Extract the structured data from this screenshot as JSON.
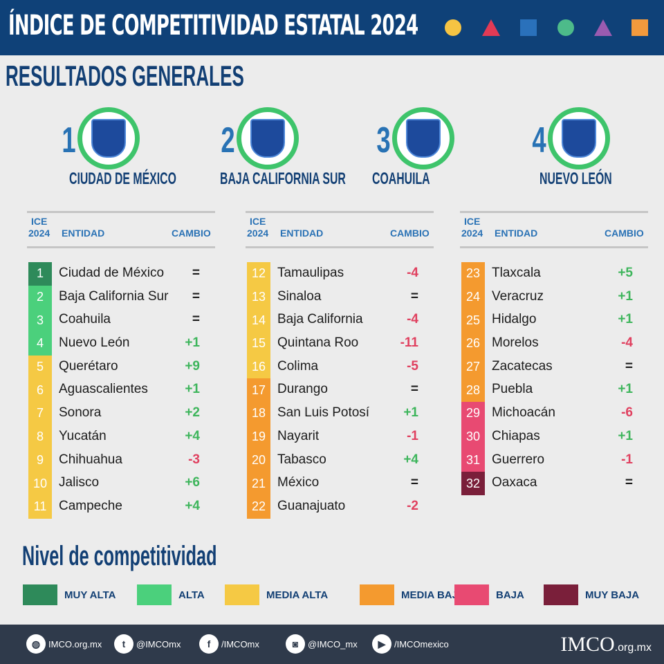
{
  "header": {
    "title": "ÍNDICE DE COMPETITIVIDAD ESTATAL 2024",
    "shapes": [
      {
        "type": "circle",
        "color": "#f6c443"
      },
      {
        "type": "triangle",
        "color": "#e23a55"
      },
      {
        "type": "square",
        "color": "#2a71bb"
      },
      {
        "type": "circle",
        "color": "#4dbb8a"
      },
      {
        "type": "triangle",
        "color": "#9a5bb0"
      },
      {
        "type": "square",
        "color": "#f39a3d"
      }
    ]
  },
  "subtitle": "RESULTADOS GENERALES",
  "top4": [
    {
      "rank": "1",
      "name": "CIUDAD DE MÉXICO"
    },
    {
      "rank": "2",
      "name": "BAJA CALIFORNIA SUR"
    },
    {
      "rank": "3",
      "name": "COAHUILA"
    },
    {
      "rank": "4",
      "name": "NUEVO LEÓN"
    }
  ],
  "table_header": {
    "ice": "ICE",
    "year": "2024",
    "entity": "ENTIDAD",
    "change": "CAMBIO"
  },
  "levels": [
    {
      "label": "MUY ALTA",
      "color": "#2e8a5a"
    },
    {
      "label": "ALTA",
      "color": "#4bd07c"
    },
    {
      "label": "MEDIA ALTA",
      "color": "#f5c944"
    },
    {
      "label": "MEDIA BAJA",
      "color": "#f49a2f"
    },
    {
      "label": "BAJA",
      "color": "#e84a72"
    },
    {
      "label": "MUY BAJA",
      "color": "#7a1f3a"
    }
  ],
  "change_colors": {
    "up": "#3db55b",
    "down": "#e0405f",
    "same": "#1b1b1b"
  },
  "columns": [
    [
      {
        "rank": "1",
        "name": "Ciudad de México",
        "change": "=",
        "level": 0
      },
      {
        "rank": "2",
        "name": "Baja California Sur",
        "change": "=",
        "level": 1
      },
      {
        "rank": "3",
        "name": "Coahuila",
        "change": "=",
        "level": 1
      },
      {
        "rank": "4",
        "name": "Nuevo León",
        "change": "+1",
        "level": 1
      },
      {
        "rank": "5",
        "name": "Querétaro",
        "change": "+9",
        "level": 2
      },
      {
        "rank": "6",
        "name": "Aguascalientes",
        "change": "+1",
        "level": 2
      },
      {
        "rank": "7",
        "name": "Sonora",
        "change": "+2",
        "level": 2
      },
      {
        "rank": "8",
        "name": "Yucatán",
        "change": "+4",
        "level": 2
      },
      {
        "rank": "9",
        "name": "Chihuahua",
        "change": "-3",
        "level": 2
      },
      {
        "rank": "10",
        "name": "Jalisco",
        "change": "+6",
        "level": 2
      },
      {
        "rank": "11",
        "name": "Campeche",
        "change": "+4",
        "level": 2
      }
    ],
    [
      {
        "rank": "12",
        "name": "Tamaulipas",
        "change": "-4",
        "level": 2
      },
      {
        "rank": "13",
        "name": "Sinaloa",
        "change": "=",
        "level": 2
      },
      {
        "rank": "14",
        "name": "Baja California",
        "change": "-4",
        "level": 2
      },
      {
        "rank": "15",
        "name": "Quintana Roo",
        "change": "-11",
        "level": 2
      },
      {
        "rank": "16",
        "name": "Colima",
        "change": "-5",
        "level": 2
      },
      {
        "rank": "17",
        "name": "Durango",
        "change": "=",
        "level": 3
      },
      {
        "rank": "18",
        "name": "San Luis Potosí",
        "change": "+1",
        "level": 3
      },
      {
        "rank": "19",
        "name": "Nayarit",
        "change": "-1",
        "level": 3
      },
      {
        "rank": "20",
        "name": "Tabasco",
        "change": "+4",
        "level": 3
      },
      {
        "rank": "21",
        "name": "México",
        "change": "=",
        "level": 3
      },
      {
        "rank": "22",
        "name": "Guanajuato",
        "change": "-2",
        "level": 3
      }
    ],
    [
      {
        "rank": "23",
        "name": "Tlaxcala",
        "change": "+5",
        "level": 3
      },
      {
        "rank": "24",
        "name": "Veracruz",
        "change": "+1",
        "level": 3
      },
      {
        "rank": "25",
        "name": "Hidalgo",
        "change": "+1",
        "level": 3
      },
      {
        "rank": "26",
        "name": "Morelos",
        "change": "-4",
        "level": 3
      },
      {
        "rank": "27",
        "name": "Zacatecas",
        "change": "=",
        "level": 3
      },
      {
        "rank": "28",
        "name": "Puebla",
        "change": "+1",
        "level": 3
      },
      {
        "rank": "29",
        "name": "Michoacán",
        "change": "-6",
        "level": 4
      },
      {
        "rank": "30",
        "name": "Chiapas",
        "change": "+1",
        "level": 4
      },
      {
        "rank": "31",
        "name": "Guerrero",
        "change": "-1",
        "level": 4
      },
      {
        "rank": "32",
        "name": "Oaxaca",
        "change": "=",
        "level": 5
      }
    ]
  ],
  "legend_title": "Nivel de competitividad",
  "footer": {
    "links": [
      {
        "icon": "globe-icon",
        "text": "IMCO.org.mx"
      },
      {
        "icon": "twitter-icon",
        "text": "@IMCOmx"
      },
      {
        "icon": "facebook-icon",
        "text": "/IMCOmx"
      },
      {
        "icon": "instagram-icon",
        "text": "@IMCO_mx"
      },
      {
        "icon": "youtube-icon",
        "text": "/IMCOmexico"
      }
    ],
    "logo": "IMCO",
    "logo_suffix": ".org.mx"
  }
}
